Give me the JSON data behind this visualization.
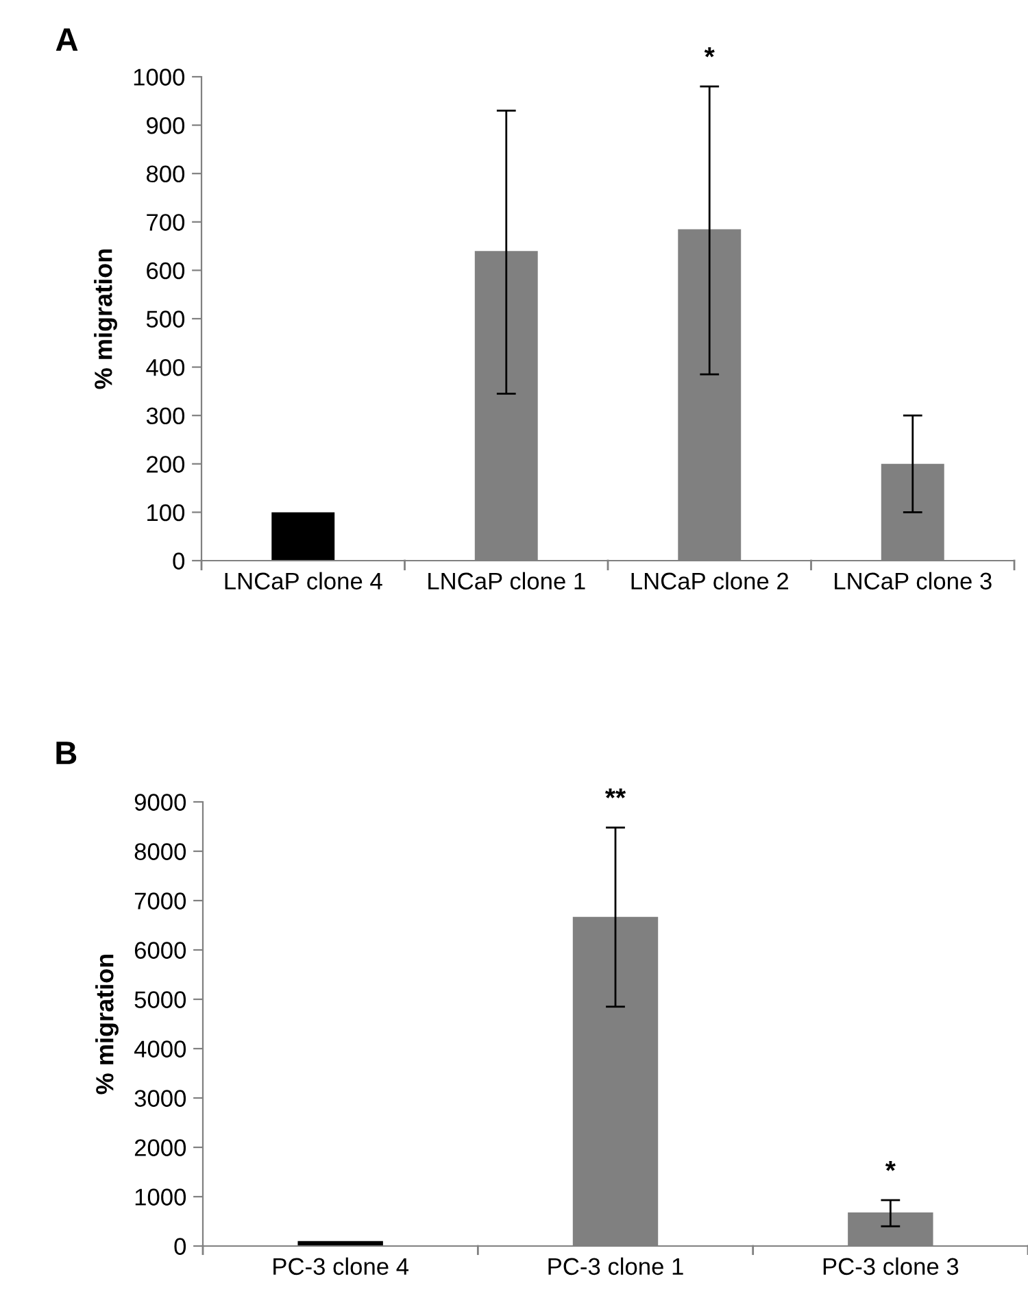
{
  "chart_data": [
    {
      "type": "bar",
      "title": "A",
      "ylabel": "% migration",
      "categories": [
        "LNCaP clone 4",
        "LNCaP clone 1",
        "LNCaP clone 2",
        "LNCaP clone 3"
      ],
      "values": [
        100,
        640,
        685,
        200
      ],
      "colors": [
        "#000000",
        "#808080",
        "#808080",
        "#808080"
      ],
      "errors": [
        null,
        [
          345,
          930
        ],
        [
          385,
          980
        ],
        [
          100,
          300
        ]
      ],
      "ylim": [
        0,
        1000
      ],
      "yticks": [
        0,
        100,
        200,
        300,
        400,
        500,
        600,
        700,
        800,
        900,
        1000
      ],
      "grid": false,
      "legend": false,
      "annotations": [
        {
          "text": "*",
          "x": "LNCaP clone 2",
          "y": 980
        }
      ]
    },
    {
      "type": "bar",
      "title": "B",
      "ylabel": "% migration",
      "categories": [
        "PC-3 clone 4",
        "PC-3 clone 1",
        "PC-3 clone 3"
      ],
      "values": [
        100,
        6670,
        680
      ],
      "colors": [
        "#000000",
        "#808080",
        "#808080"
      ],
      "errors": [
        null,
        [
          4850,
          8480
        ],
        [
          400,
          930
        ]
      ],
      "ylim": [
        0,
        9000
      ],
      "yticks": [
        0,
        1000,
        2000,
        3000,
        4000,
        5000,
        6000,
        7000,
        8000,
        9000
      ],
      "grid": false,
      "legend": false,
      "annotations": [
        {
          "text": "**",
          "x": "PC-3 clone 1",
          "y": 8480
        },
        {
          "text": "*",
          "x": "PC-3 clone 3",
          "y": 930
        }
      ]
    }
  ]
}
